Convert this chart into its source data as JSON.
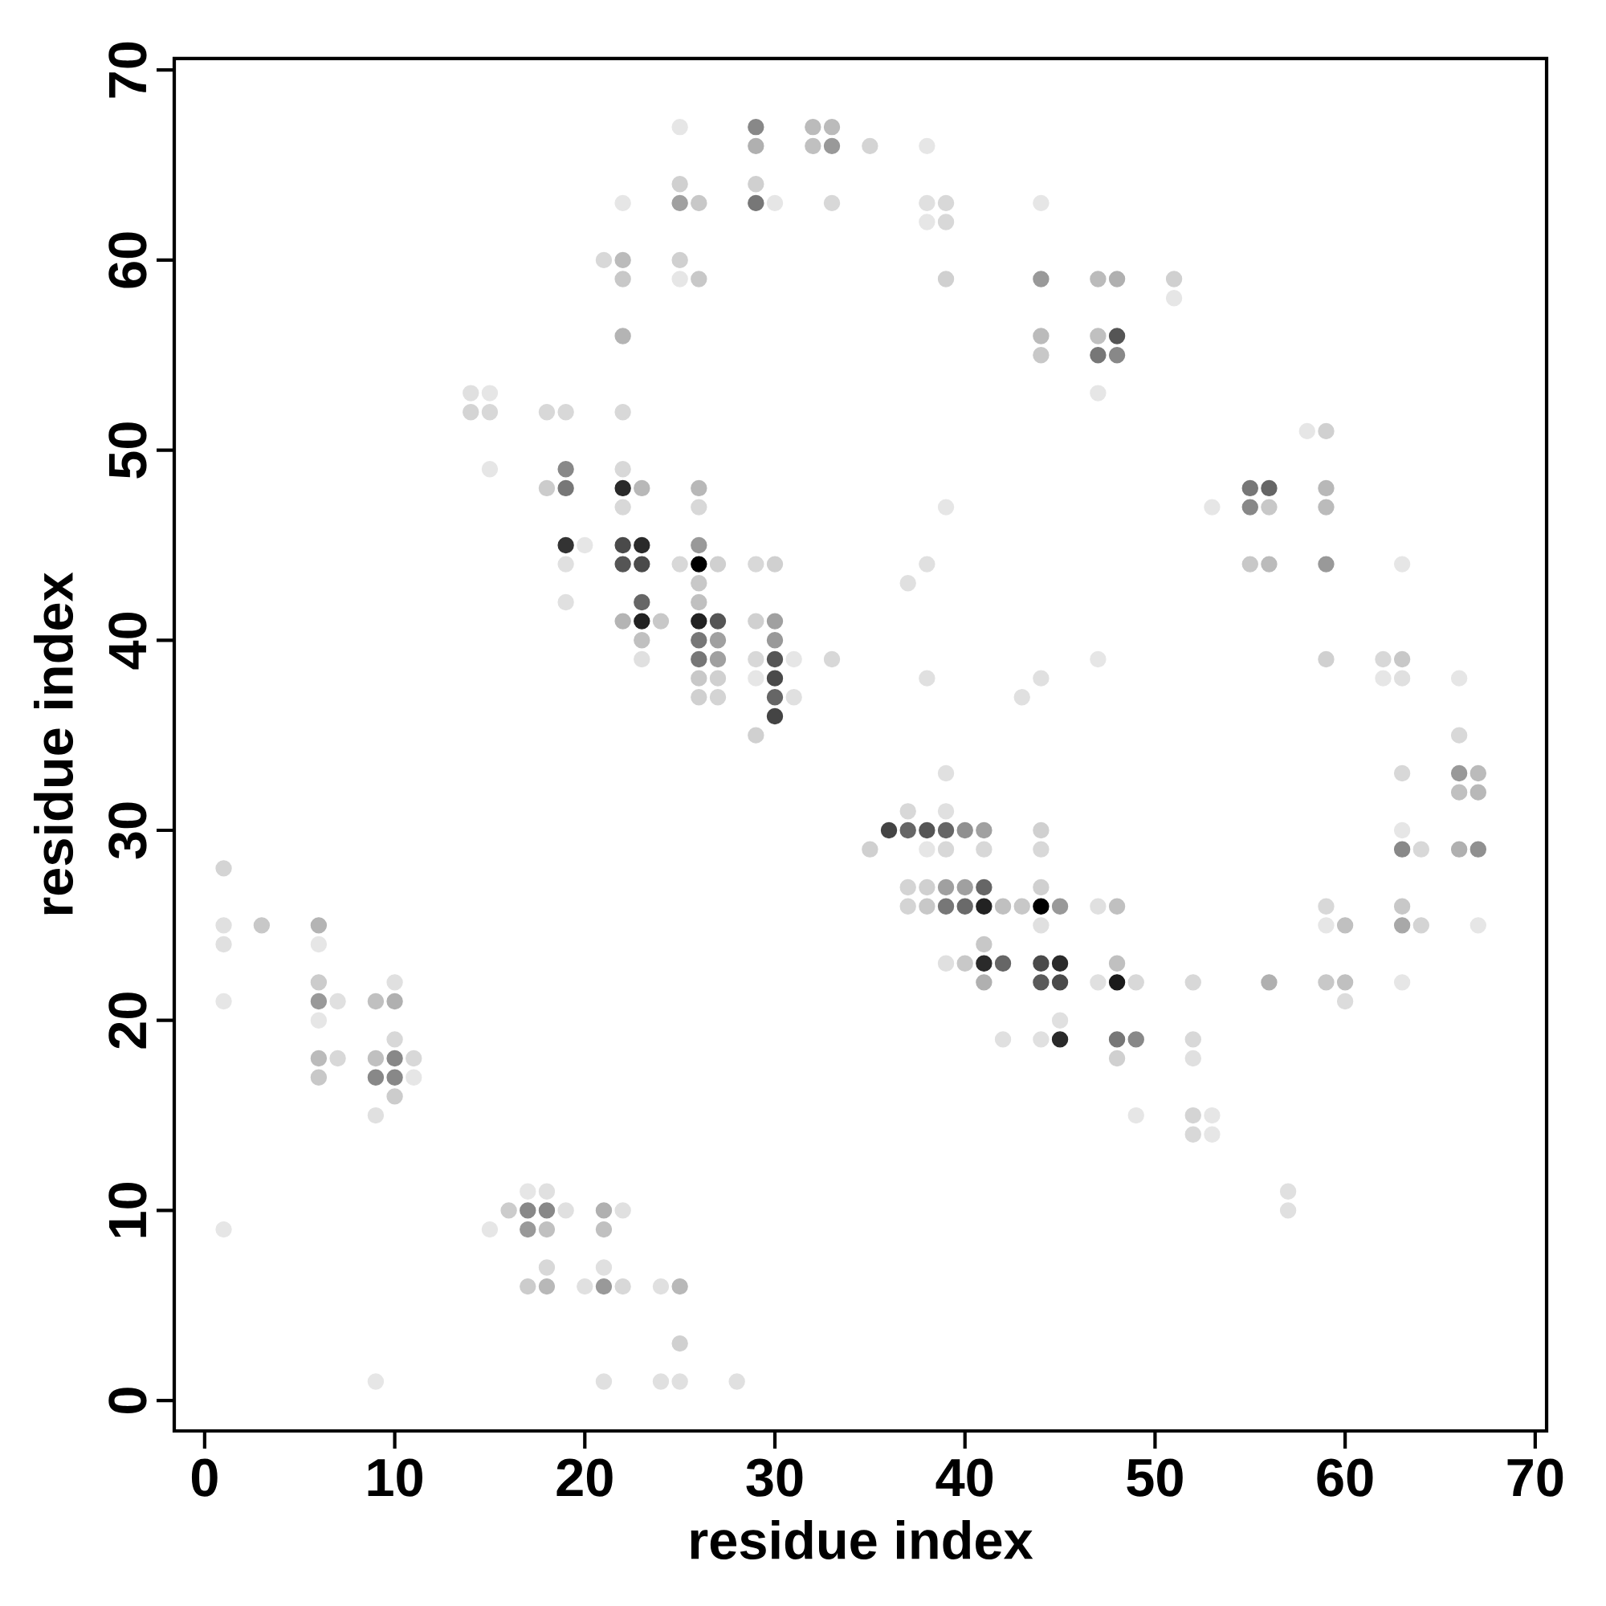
{
  "chart_data": {
    "type": "scatter",
    "xlabel": "residue index",
    "ylabel": "residue index",
    "marker": "circle",
    "xlim": [
      -1.6,
      70.6
    ],
    "ylim": [
      -1.6,
      70.6
    ],
    "xticks": [
      0,
      10,
      20,
      30,
      40,
      50,
      60,
      70
    ],
    "yticks": [
      0,
      10,
      20,
      30,
      40,
      50,
      60,
      70
    ],
    "x": [
      1,
      1,
      1,
      1,
      1,
      3,
      6,
      6,
      6,
      6,
      6,
      6,
      6,
      7,
      7,
      9,
      9,
      9,
      9,
      9,
      10,
      10,
      10,
      10,
      10,
      10,
      11,
      11,
      14,
      14,
      15,
      15,
      15,
      15,
      16,
      17,
      17,
      17,
      17,
      18,
      18,
      18,
      18,
      18,
      18,
      18,
      19,
      19,
      19,
      19,
      19,
      19,
      19,
      20,
      20,
      21,
      21,
      21,
      21,
      21,
      21,
      22,
      22,
      22,
      22,
      22,
      22,
      22,
      22,
      22,
      22,
      22,
      22,
      22,
      23,
      23,
      23,
      23,
      23,
      23,
      23,
      24,
      24,
      24,
      25,
      25,
      25,
      25,
      25,
      25,
      25,
      25,
      25,
      26,
      26,
      26,
      26,
      26,
      26,
      26,
      26,
      26,
      26,
      26,
      26,
      26,
      27,
      27,
      27,
      27,
      27,
      27,
      28,
      29,
      29,
      29,
      29,
      29,
      29,
      29,
      29,
      29,
      30,
      30,
      30,
      30,
      30,
      30,
      30,
      30,
      31,
      31,
      32,
      32,
      33,
      33,
      33,
      33,
      35,
      35,
      36,
      37,
      37,
      37,
      37,
      37,
      38,
      38,
      38,
      38,
      38,
      38,
      38,
      38,
      38,
      39,
      39,
      39,
      39,
      39,
      39,
      39,
      39,
      39,
      39,
      39,
      40,
      40,
      40,
      40,
      41,
      41,
      41,
      41,
      41,
      41,
      41,
      42,
      42,
      42,
      43,
      43,
      44,
      44,
      44,
      44,
      44,
      44,
      44,
      44,
      44,
      44,
      44,
      44,
      44,
      45,
      45,
      45,
      45,
      45,
      47,
      47,
      47,
      47,
      47,
      47,
      47,
      48,
      48,
      48,
      48,
      48,
      48,
      48,
      48,
      49,
      49,
      49,
      51,
      51,
      52,
      52,
      52,
      52,
      52,
      53,
      53,
      53,
      55,
      55,
      55,
      56,
      56,
      56,
      56,
      57,
      57,
      58,
      59,
      59,
      59,
      59,
      59,
      59,
      59,
      59,
      60,
      60,
      60,
      62,
      62,
      63,
      63,
      63,
      63,
      63,
      63,
      63,
      63,
      63,
      64,
      64,
      66,
      66,
      66,
      66,
      66,
      67,
      67,
      67,
      67
    ],
    "values": [
      28,
      25,
      24,
      21,
      9,
      25,
      25,
      24,
      22,
      21,
      20,
      18,
      17,
      21,
      18,
      21,
      18,
      17,
      15,
      1,
      22,
      21,
      19,
      18,
      17,
      16,
      18,
      17,
      53,
      52,
      53,
      52,
      49,
      9,
      10,
      11,
      10,
      9,
      6,
      52,
      48,
      11,
      10,
      9,
      7,
      6,
      52,
      49,
      48,
      45,
      44,
      42,
      10,
      45,
      6,
      60,
      10,
      9,
      7,
      6,
      1,
      63,
      60,
      59,
      56,
      52,
      49,
      48,
      47,
      45,
      44,
      41,
      10,
      6,
      48,
      45,
      44,
      42,
      41,
      40,
      39,
      41,
      6,
      1,
      67,
      64,
      63,
      60,
      59,
      44,
      6,
      3,
      1,
      63,
      59,
      48,
      47,
      45,
      44,
      43,
      42,
      41,
      40,
      39,
      38,
      37,
      44,
      41,
      40,
      39,
      38,
      37,
      1,
      67,
      66,
      64,
      63,
      44,
      41,
      39,
      38,
      35,
      63,
      44,
      41,
      40,
      39,
      38,
      37,
      36,
      39,
      37,
      67,
      66,
      67,
      66,
      63,
      39,
      66,
      29,
      30,
      43,
      31,
      30,
      27,
      26,
      66,
      63,
      62,
      44,
      38,
      30,
      29,
      27,
      26,
      63,
      62,
      59,
      47,
      33,
      31,
      30,
      29,
      27,
      26,
      23,
      30,
      27,
      26,
      23,
      30,
      29,
      27,
      26,
      24,
      23,
      22,
      26,
      23,
      19,
      37,
      26,
      63,
      59,
      56,
      55,
      38,
      30,
      29,
      27,
      26,
      25,
      23,
      22,
      19,
      26,
      23,
      22,
      20,
      19,
      59,
      56,
      55,
      53,
      39,
      26,
      22,
      59,
      56,
      55,
      26,
      23,
      22,
      19,
      18,
      22,
      19,
      15,
      59,
      58,
      22,
      19,
      18,
      15,
      14,
      47,
      15,
      14,
      48,
      47,
      44,
      48,
      47,
      44,
      22,
      11,
      10,
      51,
      51,
      48,
      47,
      44,
      39,
      26,
      25,
      22,
      25,
      22,
      21,
      39,
      38,
      44,
      39,
      38,
      33,
      30,
      29,
      26,
      25,
      22,
      29,
      25,
      38,
      35,
      33,
      32,
      29,
      33,
      32,
      29,
      25
    ],
    "colors": [
      "#d4d4d4",
      "#e0e0e0",
      "#e0e0e0",
      "#e6e6e6",
      "#e6e6e6",
      "#c8c8c8",
      "#b4b4b4",
      "#e6e6e6",
      "#cccccc",
      "#999999",
      "#e6e6e6",
      "#bbbbbb",
      "#c8c8c8",
      "#e0e0e0",
      "#d8d8d8",
      "#c0c0c0",
      "#c0c0c0",
      "#888888",
      "#e0e0e0",
      "#e6e6e6",
      "#e0e0e0",
      "#b0b0b0",
      "#d8d8d8",
      "#888888",
      "#888888",
      "#cccccc",
      "#d8d8d8",
      "#e6e6e6",
      "#e0e0e0",
      "#d4d4d4",
      "#e6e6e6",
      "#d8d8d8",
      "#e6e6e6",
      "#e6e6e6",
      "#cccccc",
      "#e6e6e6",
      "#888888",
      "#999999",
      "#cccccc",
      "#d8d8d8",
      "#cccccc",
      "#e0e0e0",
      "#888888",
      "#c0c0c0",
      "#d8d8d8",
      "#b8b8b8",
      "#d8d8d8",
      "#888888",
      "#777777",
      "#333333",
      "#e0e0e0",
      "#e0e0e0",
      "#e0e0e0",
      "#e6e6e6",
      "#e0e0e0",
      "#d8d8d8",
      "#b0b0b0",
      "#c0c0c0",
      "#e0e0e0",
      "#999999",
      "#e0e0e0",
      "#e6e6e6",
      "#bbbbbb",
      "#c8c8c8",
      "#b4b4b4",
      "#d8d8d8",
      "#d8d8d8",
      "#2a2a2a",
      "#d8d8d8",
      "#4a4a4a",
      "#555555",
      "#b4b4b4",
      "#e0e0e0",
      "#d8d8d8",
      "#b8b8b8",
      "#2a2a2a",
      "#4a4a4a",
      "#666666",
      "#222222",
      "#c0c0c0",
      "#e0e0e0",
      "#c8c8c8",
      "#e0e0e0",
      "#e0e0e0",
      "#e6e6e6",
      "#d0d0d0",
      "#a0a0a0",
      "#d0d0d0",
      "#e6e6e6",
      "#d8d8d8",
      "#b8b8b8",
      "#d0d0d0",
      "#e0e0e0",
      "#c8c8c8",
      "#c8c8c8",
      "#b8b8b8",
      "#d8d8d8",
      "#999999",
      "#000000",
      "#c8c8c8",
      "#c0c0c0",
      "#222222",
      "#777777",
      "#777777",
      "#c8c8c8",
      "#d0d0d0",
      "#d0d0d0",
      "#555555",
      "#a0a0a0",
      "#a0a0a0",
      "#d0d0d0",
      "#d4d4d4",
      "#e0e0e0",
      "#888888",
      "#b0b0b0",
      "#d0d0d0",
      "#777777",
      "#d8d8d8",
      "#d0d0d0",
      "#d8d8d8",
      "#e6e6e6",
      "#d0d0d0",
      "#e6e6e6",
      "#d0d0d0",
      "#a0a0a0",
      "#999999",
      "#555555",
      "#4a4a4a",
      "#666666",
      "#444444",
      "#e6e6e6",
      "#e0e0e0",
      "#bbbbbb",
      "#c0c0c0",
      "#bbbbbb",
      "#999999",
      "#d8d8d8",
      "#d8d8d8",
      "#d4d4d4",
      "#d0d0d0",
      "#444444",
      "#e0e0e0",
      "#d8d8d8",
      "#666666",
      "#d4d4d4",
      "#d4d4d4",
      "#e6e6e6",
      "#e0e0e0",
      "#e6e6e6",
      "#e0e0e0",
      "#e0e0e0",
      "#555555",
      "#e6e6e6",
      "#d0d0d0",
      "#c8c8c8",
      "#d8d8d8",
      "#d8d8d8",
      "#d0d0d0",
      "#e6e6e6",
      "#e0e0e0",
      "#e0e0e0",
      "#666666",
      "#d8d8d8",
      "#a0a0a0",
      "#777777",
      "#e0e0e0",
      "#909090",
      "#a0a0a0",
      "#6a6a6a",
      "#c8c8c8",
      "#a0a0a0",
      "#d8d8d8",
      "#666666",
      "#222222",
      "#c8c8c8",
      "#2a2a2a",
      "#b0b0b0",
      "#c0c0c0",
      "#666666",
      "#e0e0e0",
      "#e0e0e0",
      "#c8c8c8",
      "#e6e6e6",
      "#999999",
      "#bbbbbb",
      "#c8c8c8",
      "#e0e0e0",
      "#d0d0d0",
      "#d8d8d8",
      "#d0d0d0",
      "#000000",
      "#e0e0e0",
      "#4a4a4a",
      "#5a5a5a",
      "#e0e0e0",
      "#999999",
      "#2a2a2a",
      "#4a4a4a",
      "#e0e0e0",
      "#2a2a2a",
      "#bbbbbb",
      "#c0c0c0",
      "#777777",
      "#e6e6e6",
      "#e6e6e6",
      "#e0e0e0",
      "#e0e0e0",
      "#b0b0b0",
      "#555555",
      "#888888",
      "#c0c0c0",
      "#c0c0c0",
      "#1a1a1a",
      "#777777",
      "#d0d0d0",
      "#d8d8d8",
      "#888888",
      "#e6e6e6",
      "#d0d0d0",
      "#e6e6e6",
      "#d8d8d8",
      "#d8d8d8",
      "#e0e0e0",
      "#d4d4d4",
      "#d8d8d8",
      "#e6e6e6",
      "#e6e6e6",
      "#e6e6e6",
      "#777777",
      "#888888",
      "#c8c8c8",
      "#666666",
      "#c8c8c8",
      "#bbbbbb",
      "#b0b0b0",
      "#e0e0e0",
      "#e0e0e0",
      "#e6e6e6",
      "#d0d0d0",
      "#b8b8b8",
      "#bbbbbb",
      "#999999",
      "#d0d0d0",
      "#d8d8d8",
      "#e6e6e6",
      "#c8c8c8",
      "#c0c0c0",
      "#c0c0c0",
      "#dcdcdc",
      "#d8d8d8",
      "#e6e6e6",
      "#e6e6e6",
      "#c8c8c8",
      "#e0e0e0",
      "#d8d8d8",
      "#e6e6e6",
      "#888888",
      "#c8c8c8",
      "#a8a8a8",
      "#e6e6e6",
      "#d8d8d8",
      "#d4d4d4",
      "#e6e6e6",
      "#d8d8d8",
      "#999999",
      "#c0c0c0",
      "#b0b0b0",
      "#bbbbbb",
      "#b8b8b8",
      "#909090",
      "#e6e6e6"
    ]
  }
}
